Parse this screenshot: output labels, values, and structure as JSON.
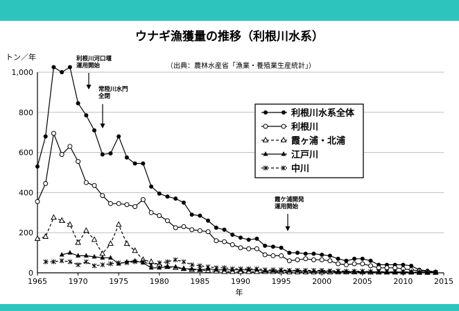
{
  "title": "ウナギ漁獲量の推移（利根川水系）",
  "source": "（出典：農林水産省「漁業・養殖業生産統計」）",
  "colors": {
    "band": "#2ec4be",
    "line": "#000000",
    "grid": "#bdbdbd"
  },
  "chart_data": {
    "type": "line",
    "title": "ウナギ漁獲量の推移（利根川水系）",
    "ylabel": "トン／年",
    "xlabel": "年",
    "xlim": [
      1965,
      2015
    ],
    "ylim": [
      0,
      1000
    ],
    "xticks": [
      1965,
      1970,
      1975,
      1980,
      1985,
      1990,
      1995,
      2000,
      2005,
      2010,
      2015
    ],
    "yticks": [
      0,
      200,
      400,
      600,
      800,
      1000
    ],
    "ytick_labels": [
      "0",
      "200",
      "400",
      "600",
      "800",
      "1,000"
    ],
    "grid": "horizontal",
    "legend_position": "right",
    "annotations": [
      {
        "text_lines": [
          "利根川河口堰",
          "運用開始"
        ],
        "x": 1971
      },
      {
        "text_lines": [
          "常陸川水門",
          "全閉"
        ],
        "x": 1973
      },
      {
        "text_lines": [
          "霞ケ浦開発",
          "運用開始"
        ],
        "x": 1996
      }
    ],
    "series": [
      {
        "name": "利根川水系全体",
        "marker": "filled-circle",
        "dash": "solid",
        "points": [
          [
            1965,
            530
          ],
          [
            1966,
            680
          ],
          [
            1967,
            1025
          ],
          [
            1968,
            1000
          ],
          [
            1969,
            1025
          ],
          [
            1970,
            845
          ],
          [
            1971,
            785
          ],
          [
            1972,
            710
          ],
          [
            1973,
            590
          ],
          [
            1974,
            595
          ],
          [
            1975,
            680
          ],
          [
            1976,
            575
          ],
          [
            1977,
            545
          ],
          [
            1978,
            545
          ],
          [
            1979,
            430
          ],
          [
            1980,
            395
          ],
          [
            1981,
            380
          ],
          [
            1982,
            370
          ],
          [
            1983,
            350
          ],
          [
            1984,
            290
          ],
          [
            1985,
            285
          ],
          [
            1986,
            260
          ],
          [
            1987,
            225
          ],
          [
            1988,
            215
          ],
          [
            1989,
            190
          ],
          [
            1990,
            175
          ],
          [
            1991,
            165
          ],
          [
            1992,
            170
          ],
          [
            1993,
            135
          ],
          [
            1994,
            130
          ],
          [
            1995,
            125
          ],
          [
            1996,
            100
          ],
          [
            1997,
            100
          ],
          [
            1998,
            95
          ],
          [
            1999,
            95
          ],
          [
            2000,
            90
          ],
          [
            2001,
            85
          ],
          [
            2002,
            70
          ],
          [
            2003,
            60
          ],
          [
            2004,
            70
          ],
          [
            2005,
            70
          ],
          [
            2006,
            60
          ],
          [
            2007,
            40
          ],
          [
            2008,
            40
          ],
          [
            2009,
            40
          ],
          [
            2010,
            40
          ],
          [
            2011,
            35
          ],
          [
            2012,
            15
          ],
          [
            2013,
            10
          ],
          [
            2014,
            5
          ]
        ]
      },
      {
        "name": "利根川",
        "marker": "open-circle",
        "dash": "solid",
        "points": [
          [
            1965,
            355
          ],
          [
            1966,
            445
          ],
          [
            1967,
            695
          ],
          [
            1968,
            590
          ],
          [
            1969,
            630
          ],
          [
            1970,
            555
          ],
          [
            1971,
            450
          ],
          [
            1972,
            435
          ],
          [
            1973,
            385
          ],
          [
            1974,
            345
          ],
          [
            1975,
            345
          ],
          [
            1976,
            340
          ],
          [
            1977,
            330
          ],
          [
            1978,
            365
          ],
          [
            1979,
            300
          ],
          [
            1980,
            285
          ],
          [
            1981,
            260
          ],
          [
            1982,
            225
          ],
          [
            1983,
            230
          ],
          [
            1984,
            215
          ],
          [
            1985,
            210
          ],
          [
            1986,
            205
          ],
          [
            1987,
            160
          ],
          [
            1988,
            155
          ],
          [
            1989,
            140
          ],
          [
            1990,
            125
          ],
          [
            1991,
            120
          ],
          [
            1992,
            120
          ],
          [
            1993,
            90
          ],
          [
            1994,
            85
          ],
          [
            1995,
            85
          ],
          [
            1996,
            60
          ],
          [
            1997,
            65
          ],
          [
            1998,
            70
          ],
          [
            1999,
            65
          ],
          [
            2000,
            65
          ],
          [
            2001,
            60
          ],
          [
            2002,
            45
          ],
          [
            2003,
            40
          ],
          [
            2004,
            45
          ],
          [
            2005,
            45
          ],
          [
            2006,
            35
          ],
          [
            2007,
            25
          ],
          [
            2008,
            25
          ],
          [
            2009,
            25
          ],
          [
            2010,
            20
          ],
          [
            2011,
            15
          ],
          [
            2012,
            10
          ],
          [
            2013,
            5
          ],
          [
            2014,
            3
          ]
        ]
      },
      {
        "name": "霞ヶ浦・北浦",
        "marker": "open-triangle",
        "dash": "dashed",
        "points": [
          [
            1965,
            170
          ],
          [
            1966,
            180
          ],
          [
            1967,
            275
          ],
          [
            1968,
            260
          ],
          [
            1969,
            240
          ],
          [
            1970,
            150
          ],
          [
            1971,
            210
          ],
          [
            1972,
            165
          ],
          [
            1973,
            95
          ],
          [
            1974,
            145
          ],
          [
            1975,
            240
          ],
          [
            1976,
            145
          ],
          [
            1977,
            110
          ],
          [
            1978,
            65
          ],
          [
            1979,
            55
          ],
          [
            1980,
            40
          ],
          [
            1981,
            30
          ],
          [
            1982,
            25
          ],
          [
            1983,
            20
          ],
          [
            1984,
            15
          ],
          [
            1985,
            15
          ],
          [
            1986,
            10
          ],
          [
            1987,
            8
          ],
          [
            1988,
            5
          ],
          [
            1989,
            5
          ],
          [
            1990,
            5
          ],
          [
            1991,
            5
          ],
          [
            1992,
            5
          ],
          [
            1993,
            5
          ],
          [
            1994,
            5
          ],
          [
            1995,
            5
          ],
          [
            1996,
            3
          ],
          [
            1997,
            3
          ],
          [
            1998,
            3
          ],
          [
            1999,
            3
          ],
          [
            2000,
            3
          ],
          [
            2001,
            3
          ],
          [
            2002,
            3
          ],
          [
            2003,
            3
          ],
          [
            2004,
            3
          ],
          [
            2005,
            3
          ],
          [
            2006,
            2
          ],
          [
            2007,
            2
          ],
          [
            2008,
            2
          ],
          [
            2009,
            2
          ],
          [
            2010,
            2
          ],
          [
            2011,
            2
          ],
          [
            2012,
            1
          ],
          [
            2013,
            1
          ],
          [
            2014,
            1
          ]
        ]
      },
      {
        "name": "江戸川",
        "marker": "filled-triangle",
        "dash": "solid",
        "points": [
          [
            1968,
            90
          ],
          [
            1969,
            100
          ],
          [
            1970,
            85
          ],
          [
            1971,
            85
          ],
          [
            1972,
            80
          ],
          [
            1973,
            75
          ],
          [
            1974,
            75
          ],
          [
            1975,
            45
          ],
          [
            1976,
            55
          ],
          [
            1977,
            60
          ],
          [
            1978,
            50
          ],
          [
            1979,
            25
          ],
          [
            1980,
            25
          ],
          [
            1981,
            30
          ],
          [
            1982,
            30
          ],
          [
            1983,
            20
          ],
          [
            1984,
            20
          ],
          [
            1985,
            15
          ],
          [
            1986,
            20
          ],
          [
            1987,
            15
          ],
          [
            1988,
            15
          ],
          [
            1989,
            15
          ],
          [
            1990,
            15
          ],
          [
            1991,
            15
          ],
          [
            1992,
            15
          ],
          [
            1993,
            10
          ],
          [
            1994,
            10
          ],
          [
            1995,
            10
          ],
          [
            1996,
            10
          ],
          [
            1997,
            10
          ],
          [
            1998,
            8
          ],
          [
            1999,
            8
          ],
          [
            2000,
            8
          ],
          [
            2001,
            8
          ],
          [
            2002,
            6
          ],
          [
            2003,
            6
          ],
          [
            2004,
            6
          ],
          [
            2005,
            6
          ],
          [
            2006,
            5
          ],
          [
            2007,
            5
          ],
          [
            2008,
            4
          ],
          [
            2009,
            4
          ],
          [
            2010,
            4
          ],
          [
            2011,
            3
          ],
          [
            2012,
            2
          ],
          [
            2013,
            1
          ],
          [
            2014,
            1
          ]
        ]
      },
      {
        "name": "中川",
        "marker": "asterisk",
        "dash": "dashed",
        "points": [
          [
            1966,
            55
          ],
          [
            1967,
            55
          ],
          [
            1968,
            60
          ],
          [
            1969,
            55
          ],
          [
            1970,
            40
          ],
          [
            1971,
            55
          ],
          [
            1972,
            35
          ],
          [
            1973,
            40
          ],
          [
            1974,
            45
          ],
          [
            1975,
            50
          ],
          [
            1976,
            50
          ],
          [
            1977,
            55
          ],
          [
            1978,
            55
          ],
          [
            1979,
            40
          ],
          [
            1980,
            50
          ],
          [
            1981,
            55
          ],
          [
            1982,
            65
          ],
          [
            1983,
            55
          ],
          [
            1984,
            40
          ],
          [
            1985,
            35
          ],
          [
            1986,
            30
          ],
          [
            1987,
            25
          ],
          [
            1988,
            25
          ],
          [
            1989,
            20
          ],
          [
            1990,
            20
          ],
          [
            1991,
            20
          ],
          [
            1992,
            20
          ],
          [
            1993,
            15
          ],
          [
            1994,
            15
          ],
          [
            1995,
            15
          ],
          [
            1996,
            12
          ],
          [
            1997,
            12
          ],
          [
            1998,
            12
          ],
          [
            1999,
            12
          ],
          [
            2000,
            12
          ],
          [
            2001,
            10
          ],
          [
            2002,
            10
          ],
          [
            2003,
            8
          ],
          [
            2004,
            8
          ],
          [
            2005,
            8
          ],
          [
            2006,
            6
          ],
          [
            2007,
            6
          ],
          [
            2008,
            5
          ],
          [
            2009,
            5
          ],
          [
            2010,
            5
          ],
          [
            2011,
            4
          ],
          [
            2012,
            3
          ],
          [
            2013,
            2
          ],
          [
            2014,
            2
          ]
        ]
      }
    ]
  }
}
